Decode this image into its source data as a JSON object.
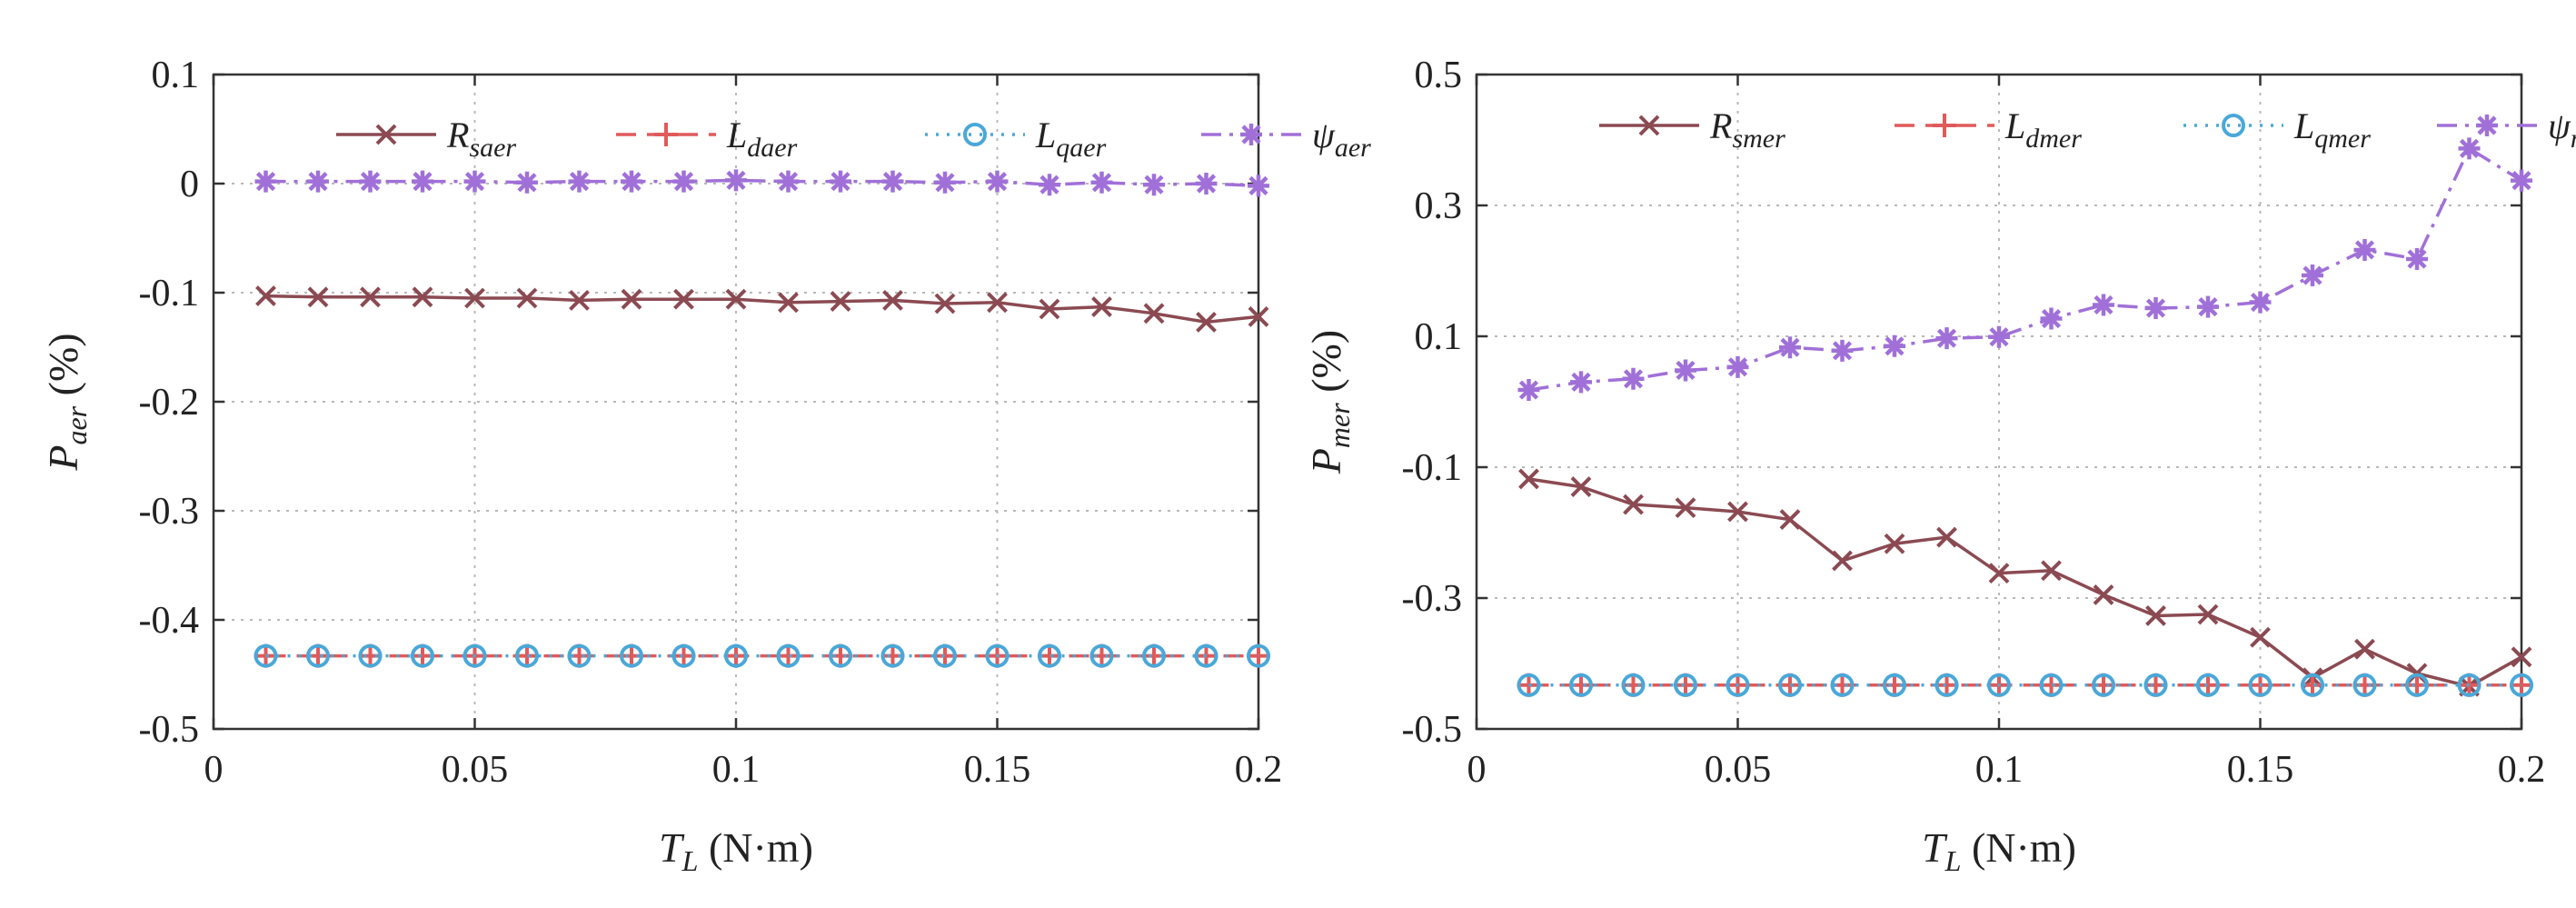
{
  "chart_data": [
    {
      "type": "line",
      "xlabel": {
        "var": "T",
        "sub": "L",
        "unit": "(N·m)"
      },
      "ylabel": {
        "var": "P",
        "sub": "aer",
        "unit": "(%)"
      },
      "xlim": [
        0,
        0.2
      ],
      "ylim": [
        -0.5,
        0.1
      ],
      "xticks": [
        0,
        0.05,
        0.1,
        0.15,
        0.2
      ],
      "xtick_labels": [
        "0",
        "0.05",
        "0.1",
        "0.15",
        "0.2"
      ],
      "yticks": [
        0.1,
        0,
        -0.1,
        -0.2,
        -0.3,
        -0.4,
        -0.5
      ],
      "ytick_labels": [
        "0.1",
        "0",
        "-0.1",
        "-0.2",
        "-0.3",
        "-0.4",
        "-0.5"
      ],
      "grid": true,
      "legend_position": "top",
      "x": [
        0.01,
        0.02,
        0.03,
        0.04,
        0.05,
        0.06,
        0.07,
        0.08,
        0.09,
        0.1,
        0.11,
        0.12,
        0.13,
        0.14,
        0.15,
        0.16,
        0.17,
        0.18,
        0.19,
        0.2
      ],
      "series": [
        {
          "name": "R_saer",
          "label_main": "R",
          "label_sub": "saer",
          "color": "#8b4a52",
          "dash": "solid",
          "marker": "x",
          "values": [
            -0.103,
            -0.104,
            -0.104,
            -0.104,
            -0.105,
            -0.105,
            -0.107,
            -0.106,
            -0.106,
            -0.106,
            -0.109,
            -0.108,
            -0.107,
            -0.11,
            -0.109,
            -0.115,
            -0.113,
            -0.119,
            -0.127,
            -0.122
          ]
        },
        {
          "name": "L_daer",
          "label_main": "L",
          "label_sub": "daer",
          "color": "#e05a5a",
          "dash": "dashed",
          "marker": "plus",
          "values": [
            -0.433,
            -0.433,
            -0.433,
            -0.433,
            -0.433,
            -0.433,
            -0.433,
            -0.433,
            -0.433,
            -0.433,
            -0.433,
            -0.433,
            -0.433,
            -0.433,
            -0.433,
            -0.433,
            -0.433,
            -0.433,
            -0.433,
            -0.433
          ]
        },
        {
          "name": "L_qaer",
          "label_main": "L",
          "label_sub": "qaer",
          "color": "#4aa8d8",
          "dash": "dotted",
          "marker": "circle",
          "values": [
            -0.433,
            -0.433,
            -0.433,
            -0.433,
            -0.433,
            -0.433,
            -0.433,
            -0.433,
            -0.433,
            -0.433,
            -0.433,
            -0.433,
            -0.433,
            -0.433,
            -0.433,
            -0.433,
            -0.433,
            -0.433,
            -0.433,
            -0.433
          ]
        },
        {
          "name": "psi_aer",
          "label_main": "ψ",
          "label_sub": "aer",
          "color": "#a070d8",
          "dash": "dashdot",
          "marker": "star",
          "values": [
            0.002,
            0.002,
            0.002,
            0.002,
            0.002,
            0.001,
            0.002,
            0.002,
            0.002,
            0.003,
            0.002,
            0.002,
            0.002,
            0.001,
            0.002,
            -0.001,
            0.001,
            -0.001,
            0.0,
            -0.002
          ]
        }
      ]
    },
    {
      "type": "line",
      "xlabel": {
        "var": "T",
        "sub": "L",
        "unit": "(N·m)"
      },
      "ylabel": {
        "var": "P",
        "sub": "mer",
        "unit": "(%)"
      },
      "xlim": [
        0,
        0.2
      ],
      "ylim": [
        -0.5,
        0.5
      ],
      "xticks": [
        0,
        0.05,
        0.1,
        0.15,
        0.2
      ],
      "xtick_labels": [
        "0",
        "0.05",
        "0.1",
        "0.15",
        "0.2"
      ],
      "yticks": [
        0.5,
        0.3,
        0.1,
        -0.1,
        -0.3,
        -0.5
      ],
      "ytick_labels": [
        "0.5",
        "0.3",
        "0.1",
        "-0.1",
        "-0.3",
        "-0.5"
      ],
      "grid": true,
      "legend_position": "top",
      "x": [
        0.01,
        0.02,
        0.03,
        0.04,
        0.05,
        0.06,
        0.07,
        0.08,
        0.09,
        0.1,
        0.11,
        0.12,
        0.13,
        0.14,
        0.15,
        0.16,
        0.17,
        0.18,
        0.19,
        0.2
      ],
      "series": [
        {
          "name": "R_smer",
          "label_main": "R",
          "label_sub": "smer",
          "color": "#8b4a52",
          "dash": "solid",
          "marker": "x",
          "values": [
            -0.118,
            -0.13,
            -0.157,
            -0.162,
            -0.168,
            -0.18,
            -0.243,
            -0.217,
            -0.207,
            -0.262,
            -0.258,
            -0.295,
            -0.327,
            -0.325,
            -0.36,
            -0.422,
            -0.378,
            -0.415,
            -0.435,
            -0.39
          ]
        },
        {
          "name": "L_dmer",
          "label_main": "L",
          "label_sub": "dmer",
          "color": "#e05a5a",
          "dash": "dashed",
          "marker": "plus",
          "values": [
            -0.433,
            -0.433,
            -0.433,
            -0.433,
            -0.433,
            -0.433,
            -0.433,
            -0.433,
            -0.433,
            -0.433,
            -0.433,
            -0.433,
            -0.433,
            -0.433,
            -0.433,
            -0.433,
            -0.433,
            -0.433,
            -0.433,
            -0.433
          ]
        },
        {
          "name": "L_qmer",
          "label_main": "L",
          "label_sub": "qmer",
          "color": "#4aa8d8",
          "dash": "dotted",
          "marker": "circle",
          "values": [
            -0.433,
            -0.433,
            -0.433,
            -0.433,
            -0.433,
            -0.433,
            -0.433,
            -0.433,
            -0.433,
            -0.433,
            -0.433,
            -0.433,
            -0.433,
            -0.433,
            -0.433,
            -0.433,
            -0.433,
            -0.433,
            -0.433,
            -0.433
          ]
        },
        {
          "name": "psi_mer",
          "label_main": "ψ",
          "label_sub": "mer",
          "color": "#a070d8",
          "dash": "dashdot",
          "marker": "star",
          "values": [
            0.018,
            0.03,
            0.035,
            0.048,
            0.053,
            0.083,
            0.078,
            0.085,
            0.097,
            0.099,
            0.127,
            0.148,
            0.143,
            0.145,
            0.152,
            0.193,
            0.232,
            0.218,
            0.387,
            0.338
          ]
        }
      ]
    }
  ]
}
